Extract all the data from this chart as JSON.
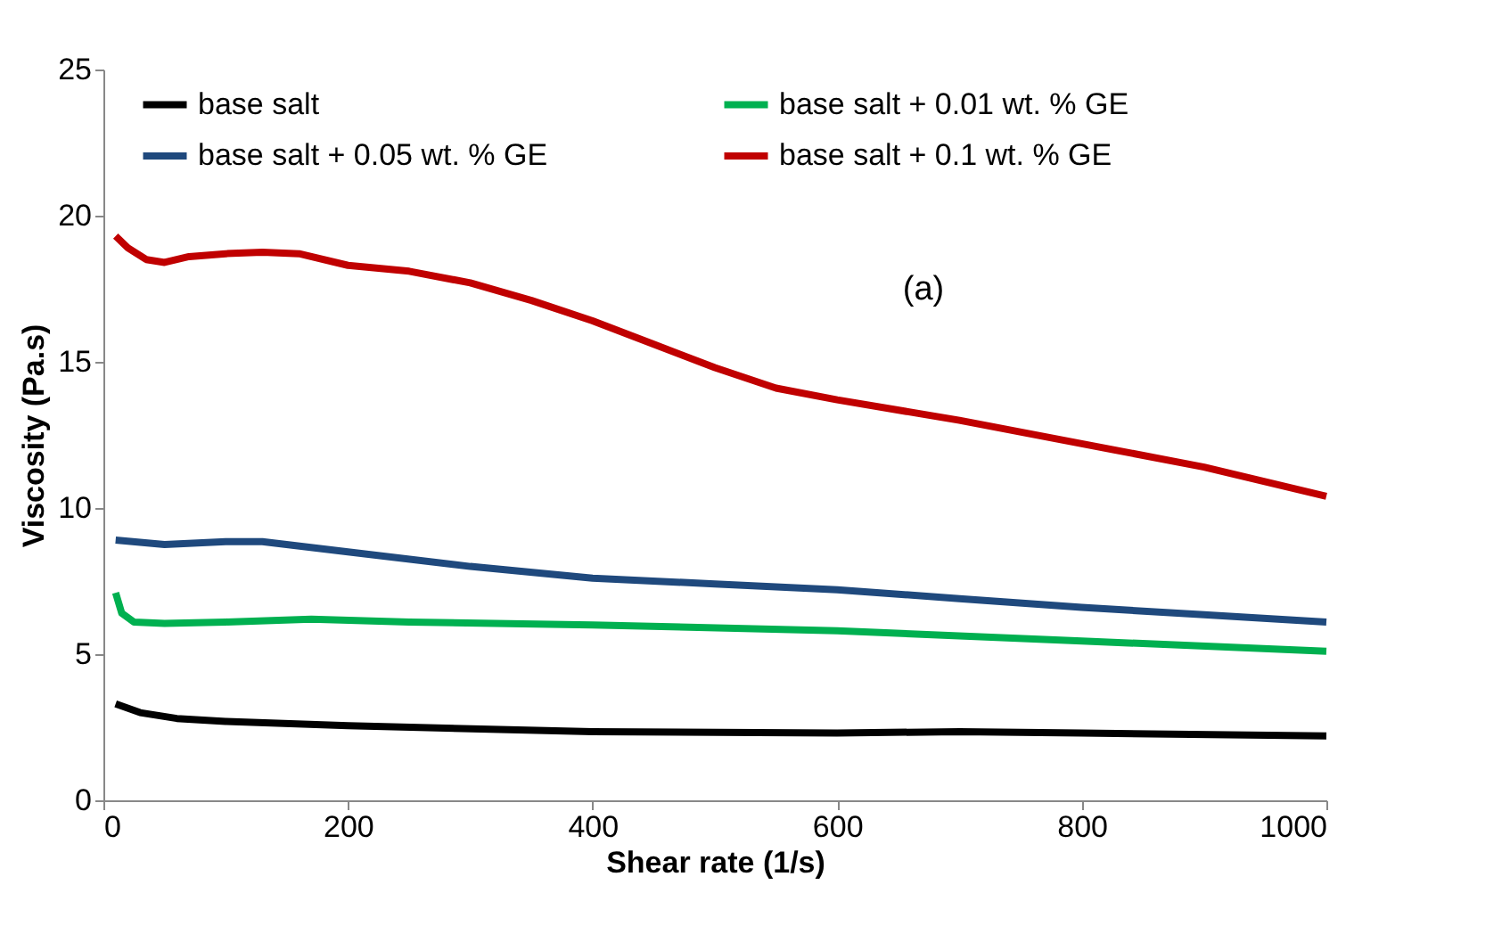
{
  "chart_data": {
    "type": "line",
    "xlabel": "Shear rate (1/s)",
    "ylabel": "Viscosity (Pa.s)",
    "xlim": [
      0,
      1000
    ],
    "xticks": [
      0,
      200,
      400,
      600,
      800,
      1000
    ],
    "ylim": [
      0,
      25
    ],
    "yticks": [
      0,
      5,
      10,
      15,
      20,
      25
    ],
    "grid": false,
    "legend": "top",
    "marker": "none",
    "line_style": "solid",
    "annotations": [
      "(a)"
    ],
    "series": [
      {
        "name": "base salt",
        "color": "#000000",
        "x": [
          10,
          30,
          60,
          100,
          200,
          400,
          600,
          700,
          800,
          1000
        ],
        "values": [
          3.3,
          3.0,
          2.8,
          2.7,
          2.55,
          2.35,
          2.3,
          2.35,
          2.3,
          2.2
        ]
      },
      {
        "name": "base salt + 0.01 wt. % GE",
        "color": "#00b050",
        "x": [
          10,
          15,
          25,
          50,
          100,
          170,
          250,
          400,
          600,
          800,
          1000
        ],
        "values": [
          7.1,
          6.4,
          6.1,
          6.05,
          6.1,
          6.2,
          6.1,
          6.0,
          5.8,
          5.45,
          5.1
        ]
      },
      {
        "name": "base salt + 0.05 wt. % GE",
        "color": "#1f497d",
        "x": [
          10,
          50,
          100,
          130,
          200,
          300,
          400,
          500,
          600,
          700,
          800,
          900,
          1000
        ],
        "values": [
          8.9,
          8.75,
          8.85,
          8.85,
          8.5,
          8.0,
          7.6,
          7.4,
          7.2,
          6.9,
          6.6,
          6.35,
          6.1
        ]
      },
      {
        "name": "base salt + 0.1 wt. % GE",
        "color": "#c00000",
        "x": [
          10,
          20,
          35,
          50,
          70,
          100,
          130,
          160,
          200,
          250,
          300,
          350,
          400,
          450,
          500,
          550,
          600,
          700,
          800,
          900,
          1000
        ],
        "values": [
          19.3,
          18.9,
          18.5,
          18.4,
          18.6,
          18.7,
          18.75,
          18.7,
          18.3,
          18.1,
          17.7,
          17.1,
          16.4,
          15.6,
          14.8,
          14.1,
          13.7,
          13.0,
          12.2,
          11.4,
          10.4
        ]
      }
    ]
  }
}
